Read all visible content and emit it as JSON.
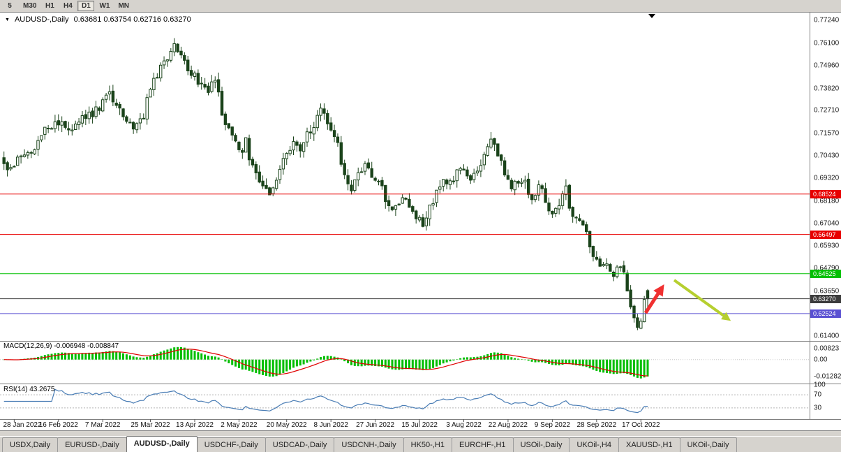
{
  "colors": {
    "candle": "#1a431a",
    "candle_bull_fill": "#ffffff",
    "macd_histogram": "#00be00",
    "macd_signal": "#e00000",
    "rsi_line": "#4a7db5",
    "level_dashed": "#b4b4b4",
    "panel_border": "#808080",
    "chart_bg": "#ffffff",
    "toolbar_bg": "#d6d3ce",
    "red_line": "#e80000",
    "green_line": "#00c000",
    "purple_line": "#5a50d2",
    "current_price_line": "#3c3c3c",
    "red_arrow": "#f03030",
    "green_arrow": "#b6cf2f"
  },
  "toolbar": {
    "timeframes": [
      {
        "label": "5",
        "active": false
      },
      {
        "label": "M30",
        "active": false
      },
      {
        "label": "H1",
        "active": false
      },
      {
        "label": "H4",
        "active": false
      },
      {
        "label": "D1",
        "active": true
      },
      {
        "label": "W1",
        "active": false
      },
      {
        "label": "MN",
        "active": false
      }
    ]
  },
  "chart": {
    "title_symbol": "AUDUSD-,Daily",
    "title_ohlc": "0.63681 0.63754 0.62716 0.63270",
    "macd_label": "MACD(12,26,9) -0.006948 -0.008847",
    "rsi_label": "RSI(14) 43.2675"
  },
  "chart_data": {
    "type": "candlestick",
    "symbol": "AUDUSD",
    "period": "Daily",
    "candle_count": 190,
    "price_range": {
      "max": 0.7724,
      "min": 0.614
    },
    "last_candle": {
      "open": 0.63681,
      "high": 0.63754,
      "low": 0.62716,
      "close": 0.6327
    },
    "y_axis_ticks": [
      "0.77240",
      "0.76100",
      "0.74960",
      "0.73820",
      "0.72710",
      "0.71570",
      "0.70430",
      "0.69320",
      "0.68180",
      "0.67040",
      "0.65930",
      "0.64790",
      "0.63650",
      "0.62510",
      "0.61400"
    ],
    "x_axis_dates": [
      {
        "label": "28 Jan 2022",
        "index": 3
      },
      {
        "label": "16 Feb 2022",
        "index": 16
      },
      {
        "label": "7 Mar 2022",
        "index": 29
      },
      {
        "label": "25 Mar 2022",
        "index": 43
      },
      {
        "label": "13 Apr 2022",
        "index": 56
      },
      {
        "label": "2 May 2022",
        "index": 69
      },
      {
        "label": "20 May 2022",
        "index": 83
      },
      {
        "label": "8 Jun 2022",
        "index": 96
      },
      {
        "label": "27 Jun 2022",
        "index": 109
      },
      {
        "label": "15 Jul 2022",
        "index": 122
      },
      {
        "label": "3 Aug 2022",
        "index": 135
      },
      {
        "label": "22 Aug 2022",
        "index": 148
      },
      {
        "label": "9 Sep 2022",
        "index": 161
      },
      {
        "label": "28 Sep 2022",
        "index": 174
      },
      {
        "label": "17 Oct 2022",
        "index": 187
      }
    ],
    "horizontal_lines": [
      {
        "price": 0.68524,
        "label": "0.68524",
        "color": "#e80000",
        "role": "resistance"
      },
      {
        "price": 0.66497,
        "label": "0.66497",
        "color": "#e80000",
        "role": "resistance"
      },
      {
        "price": 0.64525,
        "label": "0.64525",
        "color": "#00c000",
        "role": "resistance"
      },
      {
        "price": 0.6327,
        "label": "0.63270",
        "color": "#3c3c3c",
        "role": "current-price"
      },
      {
        "price": 0.62524,
        "label": "0.62524",
        "color": "#5a50d2",
        "role": "support"
      }
    ],
    "close_anchors": [
      [
        0,
        0.7
      ],
      [
        3,
        0.6985
      ],
      [
        5,
        0.7055
      ],
      [
        8,
        0.707
      ],
      [
        11,
        0.714
      ],
      [
        13,
        0.7185
      ],
      [
        16,
        0.7215
      ],
      [
        18,
        0.7185
      ],
      [
        20,
        0.7155
      ],
      [
        23,
        0.723
      ],
      [
        26,
        0.726
      ],
      [
        29,
        0.731
      ],
      [
        31,
        0.738
      ],
      [
        33,
        0.7295
      ],
      [
        36,
        0.723
      ],
      [
        38,
        0.7185
      ],
      [
        41,
        0.7255
      ],
      [
        43,
        0.739
      ],
      [
        46,
        0.748
      ],
      [
        48,
        0.7515
      ],
      [
        50,
        0.759
      ],
      [
        52,
        0.7555
      ],
      [
        54,
        0.7485
      ],
      [
        56,
        0.7445
      ],
      [
        58,
        0.7395
      ],
      [
        60,
        0.737
      ],
      [
        62,
        0.743
      ],
      [
        64,
        0.7255
      ],
      [
        66,
        0.7185
      ],
      [
        69,
        0.7055
      ],
      [
        71,
        0.711
      ],
      [
        73,
        0.6985
      ],
      [
        76,
        0.6895
      ],
      [
        78,
        0.684
      ],
      [
        80,
        0.6945
      ],
      [
        83,
        0.704
      ],
      [
        85,
        0.7095
      ],
      [
        87,
        0.7085
      ],
      [
        89,
        0.716
      ],
      [
        91,
        0.7205
      ],
      [
        93,
        0.726
      ],
      [
        96,
        0.7185
      ],
      [
        98,
        0.7095
      ],
      [
        100,
        0.693
      ],
      [
        102,
        0.689
      ],
      [
        104,
        0.695
      ],
      [
        106,
        0.7
      ],
      [
        109,
        0.6935
      ],
      [
        111,
        0.687
      ],
      [
        113,
        0.68
      ],
      [
        115,
        0.677
      ],
      [
        117,
        0.685
      ],
      [
        119,
        0.679
      ],
      [
        121,
        0.6735
      ],
      [
        123,
        0.67
      ],
      [
        125,
        0.6785
      ],
      [
        127,
        0.686
      ],
      [
        129,
        0.6925
      ],
      [
        131,
        0.6895
      ],
      [
        133,
        0.6985
      ],
      [
        135,
        0.696
      ],
      [
        137,
        0.6925
      ],
      [
        139,
        0.6975
      ],
      [
        141,
        0.706
      ],
      [
        143,
        0.712
      ],
      [
        145,
        0.7045
      ],
      [
        147,
        0.6965
      ],
      [
        149,
        0.689
      ],
      [
        151,
        0.693
      ],
      [
        153,
        0.69
      ],
      [
        155,
        0.6845
      ],
      [
        157,
        0.689
      ],
      [
        159,
        0.682
      ],
      [
        161,
        0.6755
      ],
      [
        163,
        0.6815
      ],
      [
        165,
        0.6875
      ],
      [
        167,
        0.6725
      ],
      [
        169,
        0.67
      ],
      [
        171,
        0.665
      ],
      [
        173,
        0.6535
      ],
      [
        175,
        0.65
      ],
      [
        177,
        0.6485
      ],
      [
        179,
        0.6435
      ],
      [
        181,
        0.6505
      ],
      [
        182,
        0.645
      ],
      [
        184,
        0.63
      ],
      [
        185,
        0.623
      ],
      [
        186,
        0.6195
      ],
      [
        187,
        0.623
      ],
      [
        188,
        0.631
      ],
      [
        189,
        0.6327
      ]
    ],
    "indicators": [
      {
        "name": "MACD",
        "settings": "12,26,9",
        "display_values": [
          -0.006948,
          -0.008847
        ],
        "scale_ticks": [
          "0.00823",
          "0.00",
          "-0.01282"
        ],
        "scale_values": [
          0.00823,
          0,
          -0.01282
        ]
      },
      {
        "name": "RSI",
        "settings": "14",
        "display_value": 43.2675,
        "scale_ticks": [
          "100",
          "70",
          "30"
        ],
        "scale_values": [
          100,
          70,
          30
        ],
        "dashed_levels": [
          70,
          30
        ]
      }
    ],
    "annotations": [
      {
        "type": "arrow",
        "color": "#f03030",
        "direction": "up-right"
      },
      {
        "type": "arrow",
        "color": "#b6cf2f",
        "direction": "down-right"
      }
    ]
  },
  "tabs": {
    "items": [
      {
        "label": "USDX,Daily",
        "active": false
      },
      {
        "label": "EURUSD-,Daily",
        "active": false
      },
      {
        "label": "AUDUSD-,Daily",
        "active": true
      },
      {
        "label": "USDCHF-,Daily",
        "active": false
      },
      {
        "label": "USDCAD-,Daily",
        "active": false
      },
      {
        "label": "USDCNH-,Daily",
        "active": false
      },
      {
        "label": "HK50-,H1",
        "active": false
      },
      {
        "label": "EURCHF-,H1",
        "active": false
      },
      {
        "label": "USOil-,Daily",
        "active": false
      },
      {
        "label": "UKOil-,H4",
        "active": false
      },
      {
        "label": "XAUUSD-,H1",
        "active": false
      },
      {
        "label": "UKOil-,Daily",
        "active": false
      }
    ]
  }
}
